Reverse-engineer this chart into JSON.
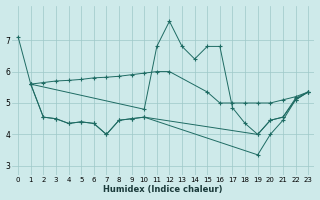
{
  "bg_color": "#ceeaea",
  "line_color": "#1e6b63",
  "grid_color": "#9ec8c8",
  "xlabel": "Humidex (Indice chaleur)",
  "ylim": [
    2.7,
    8.1
  ],
  "xlim": [
    -0.5,
    23.5
  ],
  "yticks": [
    3,
    4,
    5,
    6,
    7
  ],
  "xticks": [
    0,
    1,
    2,
    3,
    4,
    5,
    6,
    7,
    8,
    9,
    10,
    11,
    12,
    13,
    14,
    15,
    16,
    17,
    18,
    19,
    20,
    21,
    22,
    23
  ],
  "series": [
    {
      "x": [
        0,
        1,
        10,
        11,
        12,
        13,
        14,
        15,
        16,
        17,
        18,
        19,
        20,
        21,
        22,
        23
      ],
      "y": [
        7.1,
        5.6,
        4.8,
        6.8,
        7.6,
        6.8,
        6.4,
        6.8,
        6.8,
        4.85,
        4.35,
        4.0,
        4.45,
        4.55,
        5.15,
        5.35
      ]
    },
    {
      "x": [
        1,
        2,
        3,
        4,
        5,
        6,
        7,
        8,
        9,
        10,
        11,
        12,
        15,
        16,
        17,
        18,
        19,
        20,
        21,
        22,
        23
      ],
      "y": [
        5.6,
        5.65,
        5.7,
        5.72,
        5.75,
        5.8,
        5.82,
        5.85,
        5.9,
        5.95,
        6.0,
        6.0,
        5.35,
        5.0,
        5.0,
        5.0,
        5.0,
        5.0,
        5.1,
        5.2,
        5.35
      ]
    },
    {
      "x": [
        1,
        2,
        3,
        4,
        5,
        6,
        7,
        8,
        9,
        10,
        19,
        20,
        21,
        22,
        23
      ],
      "y": [
        5.6,
        4.55,
        4.5,
        4.35,
        4.4,
        4.35,
        4.0,
        4.45,
        4.5,
        4.55,
        4.0,
        4.45,
        4.55,
        5.1,
        5.35
      ]
    },
    {
      "x": [
        1,
        2,
        3,
        4,
        5,
        6,
        7,
        8,
        9,
        10,
        19,
        20,
        21,
        22,
        23
      ],
      "y": [
        5.6,
        4.55,
        4.5,
        4.35,
        4.4,
        4.35,
        4.0,
        4.45,
        4.5,
        4.55,
        3.35,
        4.0,
        4.45,
        5.1,
        5.35
      ]
    }
  ]
}
